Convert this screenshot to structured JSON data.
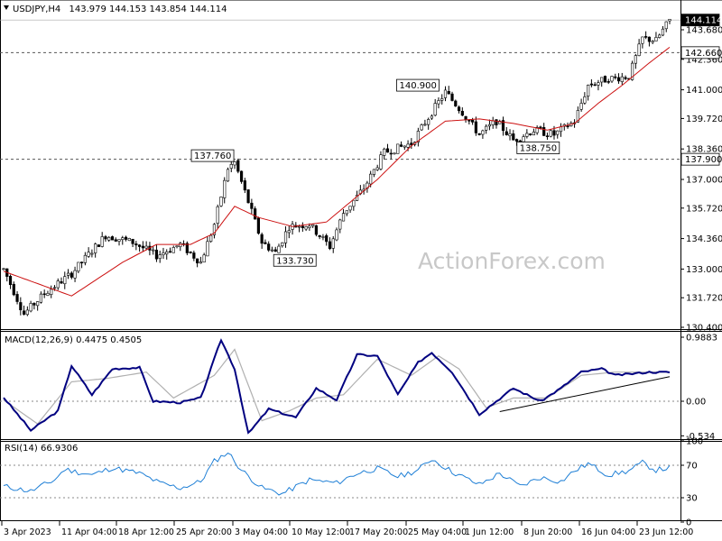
{
  "header": {
    "symbol": "USDJPY,H4",
    "ohlc": "143.979 144.153 143.854 144.114"
  },
  "watermark": "ActionForex.com",
  "chart_data": [
    {
      "type": "candlestick",
      "panel": "price",
      "y_ticks": [
        "143.680",
        "142.360",
        "141.000",
        "139.720",
        "138.360",
        "137.000",
        "135.720",
        "134.360",
        "133.000",
        "131.720",
        "130.400"
      ],
      "ylim": [
        130.0,
        144.5
      ],
      "x_labels": [
        "3 Apr 2023",
        "11 Apr 04:00",
        "18 Apr 12:00",
        "25 Apr 20:00",
        "3 May 04:00",
        "10 May 12:00",
        "17 May 20:00",
        "25 May 04:00",
        "1 Jun 12:00",
        "8 Jun 20:00",
        "16 Jun 04:00",
        "23 Jun 12:00"
      ],
      "price_path": [
        [
          0,
          133.0
        ],
        [
          6,
          131.0
        ],
        [
          12,
          131.9
        ],
        [
          20,
          132.8
        ],
        [
          30,
          134.5
        ],
        [
          38,
          134.2
        ],
        [
          45,
          133.6
        ],
        [
          52,
          134.1
        ],
        [
          58,
          133.3
        ],
        [
          62,
          135.0
        ],
        [
          66,
          137.5
        ],
        [
          68,
          137.76
        ],
        [
          72,
          136.0
        ],
        [
          76,
          134.2
        ],
        [
          80,
          133.73
        ],
        [
          84,
          134.9
        ],
        [
          90,
          135.0
        ],
        [
          96,
          134.0
        ],
        [
          100,
          135.5
        ],
        [
          106,
          136.6
        ],
        [
          112,
          138.2
        ],
        [
          120,
          138.6
        ],
        [
          126,
          140.0
        ],
        [
          130,
          140.9
        ],
        [
          135,
          140.0
        ],
        [
          140,
          139.0
        ],
        [
          145,
          139.6
        ],
        [
          150,
          138.75
        ],
        [
          156,
          139.2
        ],
        [
          162,
          139.0
        ],
        [
          168,
          139.6
        ],
        [
          172,
          141.2
        ],
        [
          178,
          141.5
        ],
        [
          184,
          141.6
        ],
        [
          188,
          143.3
        ],
        [
          192,
          143.2
        ],
        [
          196,
          144.114
        ]
      ],
      "ma_path": [
        [
          0,
          132.9
        ],
        [
          20,
          131.8
        ],
        [
          35,
          133.3
        ],
        [
          45,
          134.1
        ],
        [
          55,
          134.1
        ],
        [
          62,
          134.6
        ],
        [
          68,
          135.8
        ],
        [
          75,
          135.3
        ],
        [
          85,
          134.9
        ],
        [
          95,
          135.1
        ],
        [
          110,
          137.0
        ],
        [
          120,
          138.5
        ],
        [
          130,
          139.6
        ],
        [
          140,
          139.7
        ],
        [
          150,
          139.5
        ],
        [
          160,
          139.2
        ],
        [
          168,
          139.5
        ],
        [
          175,
          140.4
        ],
        [
          182,
          141.2
        ],
        [
          190,
          142.2
        ],
        [
          196,
          142.9
        ]
      ],
      "price_tags": {
        "last": "144.114",
        "level_upper": "142.660",
        "level_lower": "137.900"
      },
      "annotations": [
        "137.760",
        "133.730",
        "140.900",
        "138.750"
      ]
    },
    {
      "type": "line",
      "panel": "macd",
      "title": "MACD(12,26,9) 0.4475 0.4505",
      "y_ticks": [
        "0.9883",
        "0.00",
        "-0.534"
      ],
      "ylim": [
        -0.534,
        0.9883
      ],
      "macd_path": [
        [
          0,
          0.06
        ],
        [
          8,
          -0.45
        ],
        [
          16,
          -0.15
        ],
        [
          20,
          0.55
        ],
        [
          26,
          0.1
        ],
        [
          32,
          0.5
        ],
        [
          40,
          0.52
        ],
        [
          44,
          0.0
        ],
        [
          52,
          -0.02
        ],
        [
          58,
          0.05
        ],
        [
          64,
          0.95
        ],
        [
          68,
          0.5
        ],
        [
          72,
          -0.5
        ],
        [
          78,
          -0.12
        ],
        [
          86,
          -0.25
        ],
        [
          92,
          0.2
        ],
        [
          98,
          0.02
        ],
        [
          104,
          0.72
        ],
        [
          110,
          0.7
        ],
        [
          116,
          0.1
        ],
        [
          122,
          0.6
        ],
        [
          126,
          0.75
        ],
        [
          132,
          0.45
        ],
        [
          140,
          -0.2
        ],
        [
          150,
          0.2
        ],
        [
          158,
          0.0
        ],
        [
          164,
          0.2
        ],
        [
          170,
          0.45
        ],
        [
          176,
          0.5
        ],
        [
          180,
          0.4
        ],
        [
          190,
          0.45
        ],
        [
          196,
          0.4475
        ]
      ],
      "signal_path": [
        [
          0,
          0.02
        ],
        [
          10,
          -0.35
        ],
        [
          20,
          0.3
        ],
        [
          30,
          0.35
        ],
        [
          42,
          0.45
        ],
        [
          50,
          0.05
        ],
        [
          62,
          0.4
        ],
        [
          68,
          0.8
        ],
        [
          76,
          -0.3
        ],
        [
          84,
          -0.15
        ],
        [
          92,
          0.05
        ],
        [
          100,
          0.1
        ],
        [
          110,
          0.65
        ],
        [
          120,
          0.4
        ],
        [
          128,
          0.7
        ],
        [
          134,
          0.5
        ],
        [
          142,
          -0.1
        ],
        [
          150,
          0.05
        ],
        [
          160,
          0.05
        ],
        [
          170,
          0.4
        ],
        [
          180,
          0.45
        ],
        [
          196,
          0.4505
        ]
      ],
      "trendline": [
        [
          146,
          -0.16
        ],
        [
          196,
          0.38
        ]
      ]
    },
    {
      "type": "line",
      "panel": "rsi",
      "title": "RSI(14) 66.9306",
      "y_ticks": [
        "100",
        "70",
        "30",
        "0"
      ],
      "ylim": [
        0,
        100
      ],
      "rsi_path": [
        [
          0,
          44
        ],
        [
          8,
          38
        ],
        [
          15,
          52
        ],
        [
          18,
          65
        ],
        [
          26,
          58
        ],
        [
          32,
          67
        ],
        [
          40,
          60
        ],
        [
          46,
          48
        ],
        [
          52,
          42
        ],
        [
          58,
          50
        ],
        [
          62,
          75
        ],
        [
          66,
          86
        ],
        [
          70,
          64
        ],
        [
          76,
          42
        ],
        [
          82,
          35
        ],
        [
          90,
          52
        ],
        [
          98,
          48
        ],
        [
          104,
          60
        ],
        [
          110,
          66
        ],
        [
          116,
          56
        ],
        [
          122,
          64
        ],
        [
          126,
          78
        ],
        [
          132,
          62
        ],
        [
          140,
          46
        ],
        [
          146,
          60
        ],
        [
          152,
          44
        ],
        [
          158,
          55
        ],
        [
          164,
          50
        ],
        [
          168,
          63
        ],
        [
          172,
          72
        ],
        [
          178,
          58
        ],
        [
          184,
          63
        ],
        [
          188,
          73
        ],
        [
          192,
          64
        ],
        [
          196,
          66.93
        ]
      ]
    }
  ]
}
